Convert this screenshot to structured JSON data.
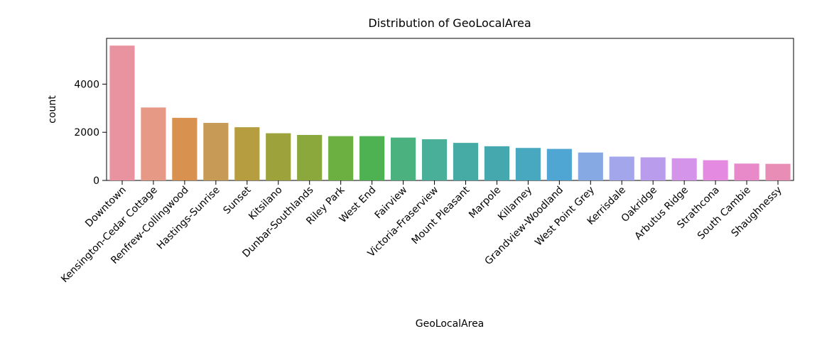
{
  "chart_data": {
    "type": "bar",
    "title": "Distribution of GeoLocalArea",
    "xlabel": "GeoLocalArea",
    "ylabel": "count",
    "ylim": [
      0,
      5900
    ],
    "y_ticks": [
      0,
      2000,
      4000
    ],
    "grid": false,
    "categories": [
      "Downtown",
      "Kensington-Cedar Cottage",
      "Renfrew-Collingwood",
      "Hastings-Sunrise",
      "Sunset",
      "Kitsilano",
      "Dunbar-Southlands",
      "Riley Park",
      "West End",
      "Fairview",
      "Victoria-Fraserview",
      "Mount Pleasant",
      "Marpole",
      "Killarney",
      "Grandview-Woodland",
      "West Point Grey",
      "Kerrisdale",
      "Oakridge",
      "Arbutus Ridge",
      "Strathcona",
      "South Cambie",
      "Shaughnessy"
    ],
    "values": [
      5600,
      3030,
      2600,
      2390,
      2210,
      1960,
      1890,
      1840,
      1840,
      1780,
      1710,
      1560,
      1420,
      1350,
      1310,
      1160,
      990,
      960,
      920,
      840,
      700,
      690
    ],
    "colors": [
      "#e8939f",
      "#e69a86",
      "#d9914f",
      "#c79b55",
      "#b69d3f",
      "#9ea23a",
      "#8aa83b",
      "#6cb042",
      "#4fb252",
      "#4bb27f",
      "#4aaf98",
      "#45aba4",
      "#44a8ae",
      "#47a8bf",
      "#4fa6d2",
      "#86a9e3",
      "#a4a6eb",
      "#b99cec",
      "#d494ea",
      "#e48be1",
      "#e889c9",
      "#e88db6"
    ]
  }
}
